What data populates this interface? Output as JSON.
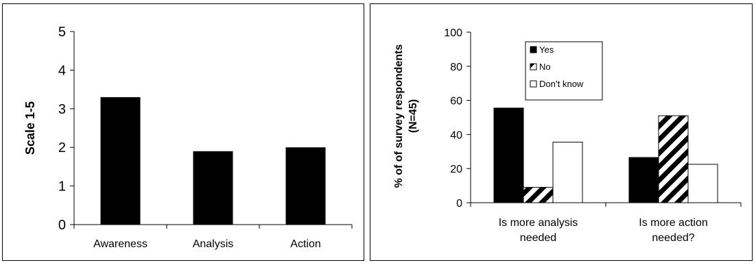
{
  "chart_data": [
    {
      "type": "bar",
      "categories": [
        "Awareness",
        "Analysis",
        "Action"
      ],
      "values": [
        3.3,
        1.9,
        2.0
      ],
      "title": "",
      "xlabel": "",
      "ylabel": "Scale 1-5",
      "ylim": [
        0,
        5
      ],
      "yticks": [
        "0",
        "1",
        "2",
        "3",
        "4",
        "5"
      ],
      "grid": false,
      "colors": {
        "bar": "#000000"
      }
    },
    {
      "type": "bar",
      "categories": [
        "Is more analysis needed",
        "Is more action needed?"
      ],
      "series": [
        {
          "name": "Yes",
          "values": [
            55.5,
            26.5
          ],
          "fill": "solid"
        },
        {
          "name": "No",
          "values": [
            9,
            51
          ],
          "fill": "hatch"
        },
        {
          "name": "Don’t know",
          "values": [
            35.5,
            22.5
          ],
          "fill": "white"
        }
      ],
      "title": "",
      "xlabel": "",
      "ylabel": "% of of survey respondents (N=45)",
      "ylim": [
        0,
        100
      ],
      "yticks": [
        "0",
        "20",
        "40",
        "60",
        "80",
        "100"
      ],
      "grid": false,
      "legend": "top-left"
    }
  ]
}
